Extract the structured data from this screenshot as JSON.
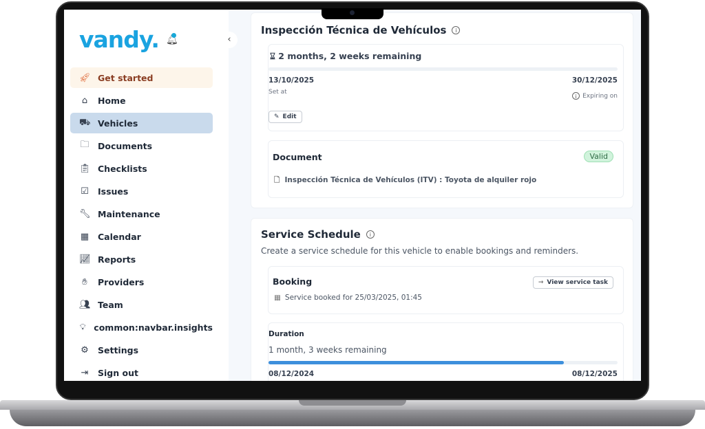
{
  "brand": {
    "logo": "vandy.",
    "accent": "#1aa3e0"
  },
  "sidebar": {
    "items": [
      {
        "label": "Get started",
        "icon": "rocket-icon"
      },
      {
        "label": "Home",
        "icon": "home-icon"
      },
      {
        "label": "Vehicles",
        "icon": "truck-icon",
        "active": true
      },
      {
        "label": "Documents",
        "icon": "folder-icon"
      },
      {
        "label": "Checklists",
        "icon": "clipboard-list-icon"
      },
      {
        "label": "Issues",
        "icon": "clipboard-check-icon"
      },
      {
        "label": "Maintenance",
        "icon": "wrench-icon"
      },
      {
        "label": "Calendar",
        "icon": "calendar-icon"
      },
      {
        "label": "Reports",
        "icon": "report-icon"
      },
      {
        "label": "Providers",
        "icon": "handshake-icon"
      },
      {
        "label": "Team",
        "icon": "team-icon"
      },
      {
        "label": "common:navbar.insights",
        "icon": "lightbulb-icon"
      },
      {
        "label": "Settings",
        "icon": "gear-icon"
      },
      {
        "label": "Sign out",
        "icon": "sign-out-icon"
      }
    ]
  },
  "itv": {
    "title": "Inspección Técnica de Vehículos",
    "remaining": "2 months, 2 weeks remaining",
    "progress": 0,
    "start_date": "13/10/2025",
    "start_label": "Set at",
    "end_date": "30/12/2025",
    "end_label": "Expiring on",
    "edit_label": "Edit",
    "document": {
      "heading": "Document",
      "status": "Valid",
      "file": "Inspección Técnica de Vehículos (ITV) : Toyota de alquiler rojo"
    }
  },
  "service": {
    "title": "Service Schedule",
    "description": "Create a service schedule for this vehicle to enable bookings and reminders.",
    "booking": {
      "heading": "Booking",
      "button": "View service task",
      "text": "Service booked for 25/03/2025, 01:45"
    },
    "duration": {
      "heading": "Duration",
      "remaining": "1 month, 3 weeks remaining",
      "progress": 0.846,
      "start": "08/12/2024",
      "end": "08/12/2025"
    }
  }
}
